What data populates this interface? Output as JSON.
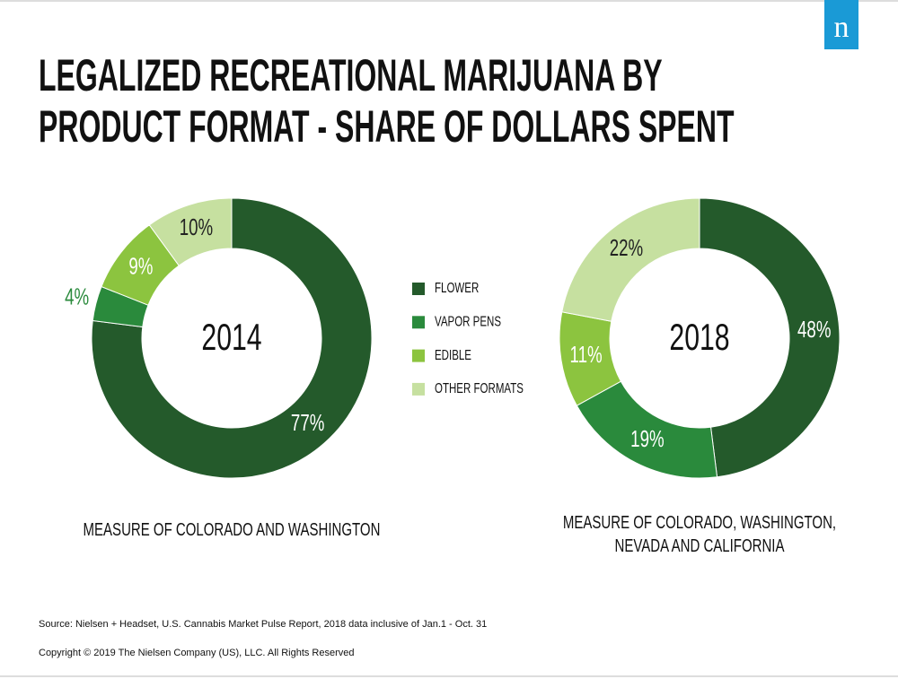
{
  "title": [
    "LEGALIZED RECREATIONAL MARIJUANA BY",
    "PRODUCT FORMAT - SHARE OF DOLLARS SPENT"
  ],
  "logo": "n",
  "source": "Source: Nielsen + Headset, U.S. Cannabis Market Pulse Report, 2018 data inclusive of Jan.1 - Oct. 31",
  "copyright": "Copyright © 2019 The Nielsen Company (US), LLC. All Rights Reserved",
  "chart_data": [
    {
      "type": "donut",
      "center_label": "2014",
      "subtitle": "MEASURE OF COLORADO AND WASHINGTON",
      "categories": [
        "FLOWER",
        "VAPOR PENS",
        "EDIBLE",
        "OTHER FORMATS"
      ],
      "values": [
        77,
        4,
        9,
        10
      ],
      "value_labels": [
        "77%",
        "4%",
        "9%",
        "10%"
      ],
      "colors": [
        "#245a2b",
        "#2a8a3c",
        "#8cc43f",
        "#c6e0a0"
      ]
    },
    {
      "type": "donut",
      "center_label": "2018",
      "subtitle": "MEASURE OF COLORADO, WASHINGTON, NEVADA AND CALIFORNIA",
      "categories": [
        "FLOWER",
        "VAPOR PENS",
        "EDIBLE",
        "OTHER FORMATS"
      ],
      "values": [
        48,
        19,
        11,
        22
      ],
      "value_labels": [
        "48%",
        "19%",
        "11%",
        "22%"
      ],
      "colors": [
        "#245a2b",
        "#2a8a3c",
        "#8cc43f",
        "#c6e0a0"
      ]
    }
  ]
}
